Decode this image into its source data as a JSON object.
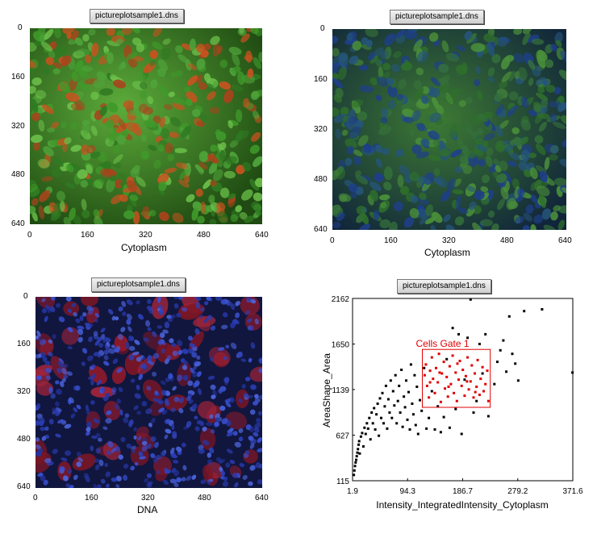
{
  "panels": [
    {
      "tab": "pictureplotsample1.dns",
      "x_ticks": [
        "0",
        "160",
        "320",
        "480",
        "640"
      ],
      "y_ticks": [
        "0",
        "160",
        "320",
        "480",
        "640"
      ],
      "xlabel": "Cytoplasm"
    },
    {
      "tab": "pictureplotsample1.dns",
      "x_ticks": [
        "0",
        "160",
        "320",
        "480",
        "640"
      ],
      "y_ticks": [
        "0",
        "160",
        "320",
        "480",
        "640"
      ],
      "xlabel": "Cytoplasm"
    },
    {
      "tab": "pictureplotsample1.dns",
      "x_ticks": [
        "0",
        "160",
        "320",
        "480",
        "640"
      ],
      "y_ticks": [
        "0",
        "160",
        "320",
        "480",
        "640"
      ],
      "xlabel": "DNA"
    },
    {
      "tab": "pictureplotsample1.dns",
      "x_ticks": [
        "1.9",
        "94.3",
        "186.7",
        "279.2",
        "371.6"
      ],
      "y_ticks": [
        "2162",
        "1650",
        "1139",
        "627",
        "115"
      ],
      "xlabel": "Intensity_IntegratedIntensity_Cytoplasm",
      "ylabel": "AreaShape_Area"
    }
  ],
  "colors": {
    "green_cells": "#3f9a2a",
    "red_cells": "#c8521f",
    "blue_nuclei": "#2c3fb8",
    "gate": "#e00000"
  },
  "chart_data": {
    "type": "scatter",
    "xlabel": "Intensity_IntegratedIntensity_Cytoplasm",
    "ylabel": "AreaShape_Area",
    "xlim": [
      1.9,
      371.6
    ],
    "ylim": [
      115,
      2162
    ],
    "gate": {
      "label": "Cells Gate 1",
      "x": [
        119,
        233
      ],
      "y": [
        940,
        1590
      ]
    },
    "series": [
      {
        "name": "",
        "color": "#000000",
        "points": [
          [
            4,
            180
          ],
          [
            5,
            230
          ],
          [
            6,
            280
          ],
          [
            7,
            320
          ],
          [
            8,
            350
          ],
          [
            9,
            390
          ],
          [
            10,
            430
          ],
          [
            11,
            470
          ],
          [
            12,
            520
          ],
          [
            13,
            560
          ],
          [
            14,
            420
          ],
          [
            16,
            610
          ],
          [
            18,
            650
          ],
          [
            20,
            500
          ],
          [
            22,
            710
          ],
          [
            24,
            640
          ],
          [
            26,
            760
          ],
          [
            28,
            700
          ],
          [
            30,
            820
          ],
          [
            32,
            580
          ],
          [
            34,
            880
          ],
          [
            36,
            760
          ],
          [
            38,
            930
          ],
          [
            40,
            690
          ],
          [
            42,
            860
          ],
          [
            44,
            980
          ],
          [
            46,
            620
          ],
          [
            48,
            1040
          ],
          [
            50,
            820
          ],
          [
            52,
            1100
          ],
          [
            54,
            760
          ],
          [
            56,
            950
          ],
          [
            58,
            1180
          ],
          [
            60,
            700
          ],
          [
            62,
            1030
          ],
          [
            64,
            880
          ],
          [
            66,
            1240
          ],
          [
            68,
            820
          ],
          [
            70,
            1120
          ],
          [
            72,
            960
          ],
          [
            74,
            1300
          ],
          [
            76,
            760
          ],
          [
            78,
            1010
          ],
          [
            80,
            1180
          ],
          [
            82,
            880
          ],
          [
            84,
            1360
          ],
          [
            86,
            720
          ],
          [
            88,
            1060
          ],
          [
            90,
            940
          ],
          [
            92,
            1240
          ],
          [
            94,
            800
          ],
          [
            96,
            1110
          ],
          [
            98,
            690
          ],
          [
            100,
            1420
          ],
          [
            102,
            980
          ],
          [
            104,
            860
          ],
          [
            106,
            1300
          ],
          [
            108,
            740
          ],
          [
            110,
            1170
          ],
          [
            112,
            640
          ],
          [
            115,
            1020
          ],
          [
            118,
            900
          ],
          [
            122,
            1380
          ],
          [
            126,
            700
          ],
          [
            130,
            820
          ],
          [
            135,
            1120
          ],
          [
            140,
            690
          ],
          [
            145,
            950
          ],
          [
            150,
            660
          ],
          [
            155,
            830
          ],
          [
            160,
            1480
          ],
          [
            165,
            710
          ],
          [
            170,
            1830
          ],
          [
            175,
            920
          ],
          [
            180,
            1760
          ],
          [
            185,
            640
          ],
          [
            190,
            1250
          ],
          [
            195,
            1720
          ],
          [
            200,
            2150
          ],
          [
            205,
            880
          ],
          [
            210,
            1010
          ],
          [
            215,
            1650
          ],
          [
            220,
            1320
          ],
          [
            225,
            1760
          ],
          [
            230,
            840
          ],
          [
            240,
            1200
          ],
          [
            245,
            1450
          ],
          [
            250,
            1580
          ],
          [
            255,
            1690
          ],
          [
            260,
            1340
          ],
          [
            265,
            1960
          ],
          [
            270,
            1540
          ],
          [
            275,
            1430
          ],
          [
            280,
            1240
          ],
          [
            290,
            2020
          ],
          [
            320,
            2040
          ],
          [
            371,
            1330
          ]
        ]
      },
      {
        "name": "",
        "color": "#e00000",
        "points": [
          [
            123,
            1300
          ],
          [
            125,
            1420
          ],
          [
            127,
            1180
          ],
          [
            130,
            1050
          ],
          [
            132,
            1350
          ],
          [
            135,
            1500
          ],
          [
            137,
            1260
          ],
          [
            140,
            1100
          ],
          [
            142,
            1380
          ],
          [
            145,
            1220
          ],
          [
            147,
            1540
          ],
          [
            150,
            1000
          ],
          [
            152,
            1320
          ],
          [
            155,
            1450
          ],
          [
            157,
            1150
          ],
          [
            160,
            1280
          ],
          [
            162,
            1060
          ],
          [
            165,
            1400
          ],
          [
            167,
            1200
          ],
          [
            170,
            1520
          ],
          [
            172,
            1100
          ],
          [
            175,
            1330
          ],
          [
            177,
            1010
          ],
          [
            180,
            1250
          ],
          [
            182,
            1460
          ],
          [
            185,
            1180
          ],
          [
            187,
            1360
          ],
          [
            190,
            1070
          ],
          [
            192,
            1290
          ],
          [
            195,
            1500
          ],
          [
            197,
            1140
          ],
          [
            200,
            1230
          ],
          [
            202,
            1410
          ],
          [
            205,
            1050
          ],
          [
            207,
            1320
          ],
          [
            210,
            1170
          ],
          [
            212,
            1470
          ],
          [
            215,
            1080
          ],
          [
            217,
            1260
          ],
          [
            220,
            1390
          ],
          [
            222,
            1120
          ],
          [
            225,
            1200
          ],
          [
            228,
            1350
          ],
          [
            230,
            1010
          ],
          [
            132,
            1220
          ],
          [
            148,
            1330
          ],
          [
            163,
            1170
          ],
          [
            178,
            1430
          ],
          [
            194,
            1230
          ],
          [
            208,
            1110
          ]
        ]
      }
    ]
  }
}
